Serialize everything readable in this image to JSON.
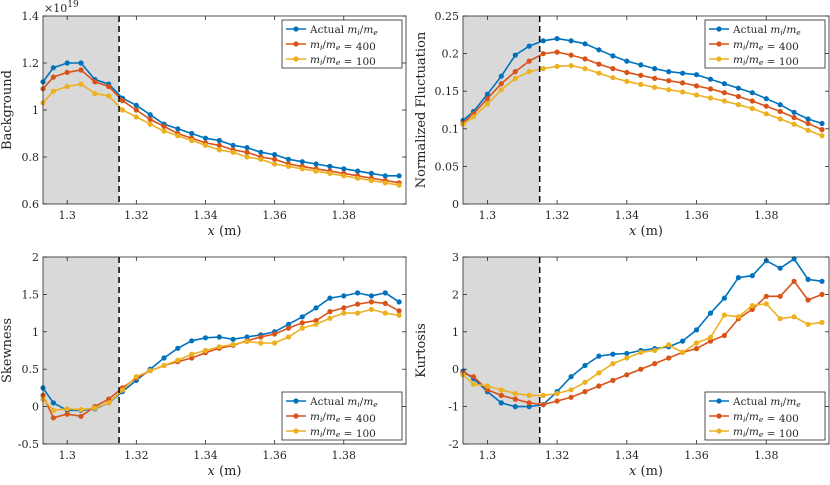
{
  "chart_data": [
    {
      "name": "background",
      "type": "line",
      "xlabel": "x (m)",
      "ylabel": "Background",
      "xlim": [
        1.293,
        1.398
      ],
      "ylim": [
        0.6,
        1.4
      ],
      "xticks": [
        1.3,
        1.32,
        1.34,
        1.36,
        1.38
      ],
      "xtick_labels": [
        "1.3",
        "1.32",
        "1.34",
        "1.36",
        "1.38"
      ],
      "yticks": [
        0.6,
        0.8,
        1.0,
        1.2,
        1.4
      ],
      "ytick_labels": [
        "0.6",
        "0.8",
        "1",
        "1.2",
        "1.4"
      ],
      "y_exponent": {
        "base": "×10",
        "power": "19"
      },
      "shaded_region": [
        1.293,
        1.315
      ],
      "dashed_line_x": 1.315,
      "legend_position": "top-right",
      "x": [
        1.293,
        1.296,
        1.3,
        1.304,
        1.308,
        1.312,
        1.316,
        1.32,
        1.324,
        1.328,
        1.332,
        1.336,
        1.34,
        1.344,
        1.348,
        1.352,
        1.356,
        1.36,
        1.364,
        1.368,
        1.372,
        1.376,
        1.38,
        1.384,
        1.388,
        1.392,
        1.396
      ],
      "series": [
        {
          "name": "Actual m_i/m_e",
          "legend_label": "Actual ",
          "legend_ratio": true,
          "legend_value": "",
          "color": "#0072BD",
          "values": [
            1.12,
            1.18,
            1.2,
            1.2,
            1.13,
            1.11,
            1.05,
            1.02,
            0.98,
            0.94,
            0.92,
            0.9,
            0.88,
            0.87,
            0.85,
            0.84,
            0.82,
            0.81,
            0.79,
            0.78,
            0.77,
            0.76,
            0.75,
            0.74,
            0.73,
            0.72,
            0.72
          ]
        },
        {
          "name": "m_i/m_e = 400",
          "legend_label": "",
          "legend_ratio": true,
          "legend_value": " = 400",
          "color": "#D95319",
          "values": [
            1.09,
            1.14,
            1.16,
            1.17,
            1.12,
            1.1,
            1.04,
            1.0,
            0.96,
            0.93,
            0.9,
            0.88,
            0.86,
            0.85,
            0.83,
            0.82,
            0.8,
            0.79,
            0.77,
            0.76,
            0.75,
            0.74,
            0.73,
            0.72,
            0.71,
            0.7,
            0.69
          ]
        },
        {
          "name": "m_i/m_e = 100",
          "legend_label": "",
          "legend_ratio": true,
          "legend_value": " = 100",
          "color": "#EDB120",
          "values": [
            1.03,
            1.08,
            1.1,
            1.11,
            1.07,
            1.06,
            1.0,
            0.97,
            0.94,
            0.91,
            0.89,
            0.87,
            0.85,
            0.83,
            0.82,
            0.8,
            0.79,
            0.77,
            0.76,
            0.75,
            0.74,
            0.73,
            0.72,
            0.71,
            0.7,
            0.69,
            0.68
          ]
        }
      ]
    },
    {
      "name": "normalized-fluctuation",
      "type": "line",
      "xlabel": "x (m)",
      "ylabel": "Normalized Fluctuation",
      "xlim": [
        1.293,
        1.398
      ],
      "ylim": [
        0,
        0.25
      ],
      "xticks": [
        1.3,
        1.32,
        1.34,
        1.36,
        1.38
      ],
      "xtick_labels": [
        "1.3",
        "1.32",
        "1.34",
        "1.36",
        "1.38"
      ],
      "yticks": [
        0,
        0.05,
        0.1,
        0.15,
        0.2,
        0.25
      ],
      "ytick_labels": [
        "0",
        "0.05",
        "0.1",
        "0.15",
        "0.2",
        "0.25"
      ],
      "shaded_region": [
        1.293,
        1.315
      ],
      "dashed_line_x": 1.315,
      "legend_position": "top-right",
      "x": [
        1.293,
        1.296,
        1.3,
        1.304,
        1.308,
        1.312,
        1.316,
        1.32,
        1.324,
        1.328,
        1.332,
        1.336,
        1.34,
        1.344,
        1.348,
        1.352,
        1.356,
        1.36,
        1.364,
        1.368,
        1.372,
        1.376,
        1.38,
        1.384,
        1.388,
        1.392,
        1.396
      ],
      "series": [
        {
          "name": "Actual m_i/m_e",
          "legend_label": "Actual ",
          "legend_ratio": true,
          "legend_value": "",
          "color": "#0072BD",
          "values": [
            0.111,
            0.123,
            0.146,
            0.17,
            0.198,
            0.21,
            0.217,
            0.22,
            0.217,
            0.213,
            0.205,
            0.197,
            0.19,
            0.185,
            0.18,
            0.176,
            0.174,
            0.172,
            0.166,
            0.16,
            0.154,
            0.148,
            0.14,
            0.132,
            0.122,
            0.113,
            0.107
          ]
        },
        {
          "name": "m_i/m_e = 400",
          "legend_label": "",
          "legend_ratio": true,
          "legend_value": " = 400",
          "color": "#D95319",
          "values": [
            0.108,
            0.12,
            0.14,
            0.16,
            0.176,
            0.19,
            0.2,
            0.202,
            0.198,
            0.193,
            0.186,
            0.18,
            0.175,
            0.171,
            0.167,
            0.164,
            0.161,
            0.157,
            0.153,
            0.148,
            0.143,
            0.137,
            0.13,
            0.123,
            0.115,
            0.107,
            0.099
          ]
        },
        {
          "name": "m_i/m_e = 100",
          "legend_label": "",
          "legend_ratio": true,
          "legend_value": " = 100",
          "color": "#EDB120",
          "values": [
            0.106,
            0.116,
            0.133,
            0.152,
            0.167,
            0.176,
            0.18,
            0.183,
            0.184,
            0.18,
            0.174,
            0.168,
            0.163,
            0.159,
            0.155,
            0.152,
            0.149,
            0.145,
            0.141,
            0.137,
            0.132,
            0.127,
            0.12,
            0.113,
            0.106,
            0.098,
            0.091
          ]
        }
      ]
    },
    {
      "name": "skewness",
      "type": "line",
      "xlabel": "x (m)",
      "ylabel": "Skewness",
      "xlim": [
        1.293,
        1.398
      ],
      "ylim": [
        -0.5,
        2
      ],
      "xticks": [
        1.3,
        1.32,
        1.34,
        1.36,
        1.38
      ],
      "xtick_labels": [
        "1.3",
        "1.32",
        "1.34",
        "1.36",
        "1.38"
      ],
      "yticks": [
        -0.5,
        0,
        0.5,
        1,
        1.5,
        2
      ],
      "ytick_labels": [
        "-0.5",
        "0",
        "0.5",
        "1",
        "1.5",
        "2"
      ],
      "shaded_region": [
        1.293,
        1.315
      ],
      "dashed_line_x": 1.315,
      "legend_position": "bottom-right",
      "x": [
        1.293,
        1.296,
        1.3,
        1.304,
        1.308,
        1.312,
        1.316,
        1.32,
        1.324,
        1.328,
        1.332,
        1.336,
        1.34,
        1.344,
        1.348,
        1.352,
        1.356,
        1.36,
        1.364,
        1.368,
        1.372,
        1.376,
        1.38,
        1.384,
        1.388,
        1.392,
        1.396
      ],
      "series": [
        {
          "name": "Actual m_i/m_e",
          "legend_label": "Actual ",
          "legend_ratio": true,
          "legend_value": "",
          "color": "#0072BD",
          "values": [
            0.25,
            0.05,
            -0.05,
            -0.05,
            -0.03,
            0.05,
            0.2,
            0.35,
            0.5,
            0.65,
            0.78,
            0.88,
            0.92,
            0.93,
            0.9,
            0.93,
            0.96,
            1.0,
            1.1,
            1.2,
            1.32,
            1.45,
            1.48,
            1.52,
            1.48,
            1.52,
            1.4
          ]
        },
        {
          "name": "m_i/m_e = 400",
          "legend_label": "",
          "legend_ratio": true,
          "legend_value": " = 400",
          "color": "#D95319",
          "values": [
            0.15,
            -0.15,
            -0.1,
            -0.13,
            0.0,
            0.1,
            0.25,
            0.38,
            0.48,
            0.55,
            0.6,
            0.65,
            0.72,
            0.78,
            0.82,
            0.88,
            0.93,
            0.97,
            1.05,
            1.12,
            1.15,
            1.27,
            1.32,
            1.37,
            1.4,
            1.38,
            1.28
          ]
        },
        {
          "name": "m_i/m_e = 100",
          "legend_label": "",
          "legend_ratio": true,
          "legend_value": " = 100",
          "color": "#EDB120",
          "values": [
            0.1,
            -0.05,
            -0.03,
            -0.04,
            -0.02,
            0.05,
            0.22,
            0.4,
            0.48,
            0.55,
            0.62,
            0.7,
            0.75,
            0.8,
            0.83,
            0.87,
            0.85,
            0.85,
            0.93,
            1.05,
            1.1,
            1.18,
            1.25,
            1.25,
            1.3,
            1.25,
            1.22
          ]
        }
      ]
    },
    {
      "name": "kurtosis",
      "type": "line",
      "xlabel": "x (m)",
      "ylabel": "Kurtosis",
      "xlim": [
        1.293,
        1.398
      ],
      "ylim": [
        -2,
        3
      ],
      "xticks": [
        1.3,
        1.32,
        1.34,
        1.36,
        1.38
      ],
      "xtick_labels": [
        "1.3",
        "1.32",
        "1.34",
        "1.36",
        "1.38"
      ],
      "yticks": [
        -2,
        -1,
        0,
        1,
        2,
        3
      ],
      "ytick_labels": [
        "-2",
        "-1",
        "0",
        "1",
        "2",
        "3"
      ],
      "shaded_region": [
        1.293,
        1.315
      ],
      "dashed_line_x": 1.315,
      "legend_position": "bottom-right",
      "x": [
        1.293,
        1.296,
        1.3,
        1.304,
        1.308,
        1.312,
        1.316,
        1.32,
        1.324,
        1.328,
        1.332,
        1.336,
        1.34,
        1.344,
        1.348,
        1.352,
        1.356,
        1.36,
        1.364,
        1.368,
        1.372,
        1.376,
        1.38,
        1.384,
        1.388,
        1.392,
        1.396
      ],
      "series": [
        {
          "name": "Actual m_i/m_e",
          "legend_label": "Actual ",
          "legend_ratio": true,
          "legend_value": "",
          "color": "#0072BD",
          "values": [
            -0.05,
            -0.25,
            -0.6,
            -0.9,
            -1.0,
            -1.0,
            -0.95,
            -0.6,
            -0.2,
            0.1,
            0.35,
            0.4,
            0.42,
            0.5,
            0.55,
            0.6,
            0.75,
            1.05,
            1.5,
            1.9,
            2.45,
            2.5,
            2.9,
            2.7,
            2.95,
            2.4,
            2.35
          ]
        },
        {
          "name": "m_i/m_e = 400",
          "legend_label": "",
          "legend_ratio": true,
          "legend_value": " = 400",
          "color": "#D95319",
          "values": [
            -0.1,
            -0.2,
            -0.55,
            -0.7,
            -0.8,
            -0.9,
            -0.95,
            -0.85,
            -0.75,
            -0.6,
            -0.45,
            -0.3,
            -0.15,
            0.0,
            0.15,
            0.3,
            0.45,
            0.55,
            0.75,
            0.9,
            1.35,
            1.6,
            1.95,
            1.95,
            2.35,
            1.85,
            2.0
          ]
        },
        {
          "name": "m_i/m_e = 100",
          "legend_label": "",
          "legend_ratio": true,
          "legend_value": " = 100",
          "color": "#EDB120",
          "values": [
            -0.15,
            -0.4,
            -0.45,
            -0.55,
            -0.65,
            -0.7,
            -0.7,
            -0.65,
            -0.55,
            -0.35,
            -0.1,
            0.15,
            0.3,
            0.45,
            0.5,
            0.65,
            0.45,
            0.7,
            0.85,
            1.45,
            1.4,
            1.7,
            1.75,
            1.35,
            1.4,
            1.2,
            1.25
          ]
        }
      ]
    }
  ]
}
